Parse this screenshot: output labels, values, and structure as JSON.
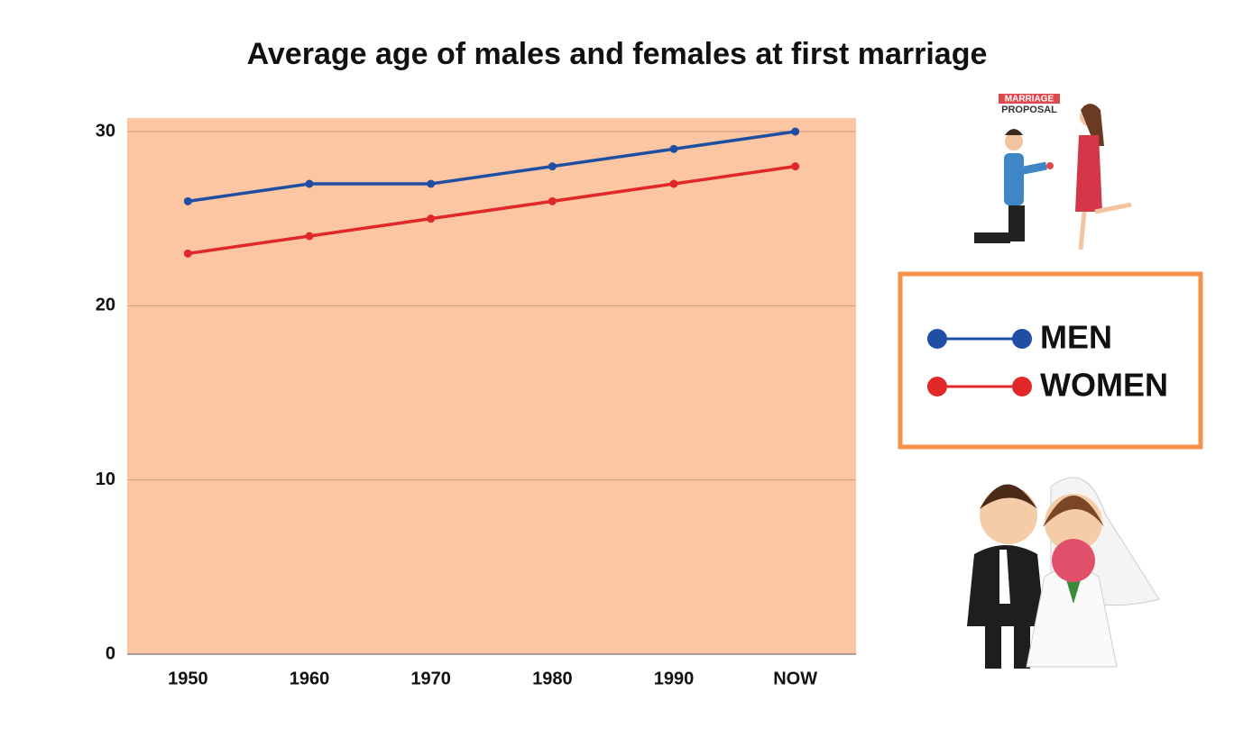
{
  "chart_data": {
    "type": "line",
    "title": "Average age of males and females at first marriage",
    "categories": [
      "1950",
      "1960",
      "1970",
      "1980",
      "1990",
      "NOW"
    ],
    "series": [
      {
        "name": "MEN",
        "color": "#1f4ea3",
        "values": [
          26,
          27,
          27,
          28,
          29,
          30
        ]
      },
      {
        "name": "WOMEN",
        "color": "#e02828",
        "values": [
          23,
          24,
          25,
          26,
          27,
          28
        ]
      }
    ],
    "ylim": [
      0,
      30
    ],
    "yticks": [
      0,
      10,
      20,
      30
    ],
    "grid": true,
    "plot_background": "#fcc6a2",
    "annotations": [
      "MARRIAGE",
      "PROPOSAL"
    ]
  }
}
